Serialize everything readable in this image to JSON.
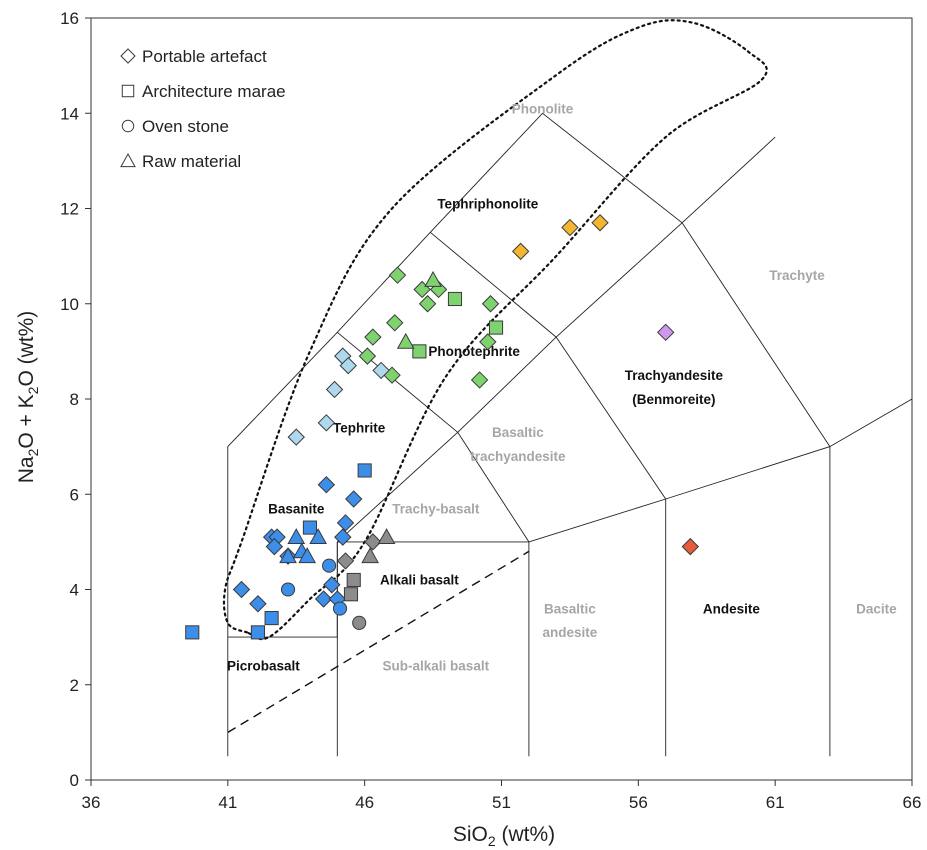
{
  "chart_data": {
    "type": "scatter",
    "title": "",
    "xlabel": {
      "main": "SiO",
      "sub": "2",
      "rest": " (wt%)"
    },
    "ylabel": {
      "p1": "Na",
      "s1": "2",
      "p2": "O + K",
      "s2": "2",
      "p3": "O (wt%)"
    },
    "xlim": [
      36,
      66
    ],
    "ylim": [
      0,
      16
    ],
    "x_ticks": [
      "36",
      "41",
      "46",
      "51",
      "56",
      "61",
      "66"
    ],
    "y_ticks": [
      "0",
      "2",
      "4",
      "6",
      "8",
      "10",
      "12",
      "14",
      "16"
    ],
    "legend": [
      {
        "label": "Portable artefact",
        "marker": "diamond"
      },
      {
        "label": "Architecture marae",
        "marker": "square"
      },
      {
        "label": "Oven stone",
        "marker": "circle"
      },
      {
        "label": "Raw material",
        "marker": "triangle"
      }
    ],
    "legend_position": "top-left",
    "fields": [
      {
        "label": "Phonolite",
        "x": 52.5,
        "y": 14.0,
        "style": "grey"
      },
      {
        "label": "Tephriphonolite",
        "x": 50.5,
        "y": 12.0,
        "style": "dark"
      },
      {
        "label": "Trachyte",
        "x": 61.8,
        "y": 10.5,
        "style": "grey"
      },
      {
        "label": "Phonotephrite",
        "x": 50.0,
        "y": 8.9,
        "style": "dark"
      },
      {
        "label": "Trachyandesite",
        "x": 57.3,
        "y": 8.4,
        "style": "dark"
      },
      {
        "label": "(Benmoreite)",
        "x": 57.3,
        "y": 7.9,
        "style": "dark"
      },
      {
        "label": "Tephrite",
        "x": 45.8,
        "y": 7.3,
        "style": "dark"
      },
      {
        "label": "Basaltic",
        "x": 51.6,
        "y": 7.2,
        "style": "grey"
      },
      {
        "label": "trachyandesite",
        "x": 51.6,
        "y": 6.7,
        "style": "grey"
      },
      {
        "label": "Basanite",
        "x": 43.5,
        "y": 5.6,
        "style": "dark"
      },
      {
        "label": "Trachy-basalt",
        "x": 48.6,
        "y": 5.6,
        "style": "grey"
      },
      {
        "label": "Alkali basalt",
        "x": 48.0,
        "y": 4.1,
        "style": "dark"
      },
      {
        "label": "Basaltic",
        "x": 53.5,
        "y": 3.5,
        "style": "grey"
      },
      {
        "label": "andesite",
        "x": 53.5,
        "y": 3.0,
        "style": "grey"
      },
      {
        "label": "Andesite",
        "x": 59.4,
        "y": 3.5,
        "style": "dark"
      },
      {
        "label": "Dacite",
        "x": 64.7,
        "y": 3.5,
        "style": "grey"
      },
      {
        "label": "Picrobasalt",
        "x": 42.3,
        "y": 2.3,
        "style": "dark"
      },
      {
        "label": "Sub-alkali basalt",
        "x": 48.6,
        "y": 2.3,
        "style": "grey"
      }
    ],
    "field_boundaries": [
      [
        [
          41,
          0.5
        ],
        [
          41,
          7
        ],
        [
          45,
          9.4
        ],
        [
          48.4,
          11.5
        ],
        [
          52.5,
          14
        ],
        [
          57.6,
          11.7
        ],
        [
          63,
          7
        ],
        [
          63,
          0.5
        ]
      ],
      [
        [
          41,
          3
        ],
        [
          45,
          3
        ],
        [
          45,
          5
        ],
        [
          49.4,
          7.3
        ],
        [
          53,
          9.3
        ],
        [
          57.6,
          11.7
        ]
      ],
      [
        [
          45,
          0.5
        ],
        [
          45,
          5
        ]
      ],
      [
        [
          45,
          5
        ],
        [
          52,
          5
        ],
        [
          57,
          5.9
        ],
        [
          63,
          7
        ],
        [
          69,
          8
        ]
      ],
      [
        [
          52,
          0.5
        ],
        [
          52,
          5
        ]
      ],
      [
        [
          57,
          0.5
        ],
        [
          57,
          5.9
        ]
      ],
      [
        [
          49.4,
          7.3
        ],
        [
          52,
          5
        ]
      ],
      [
        [
          53,
          9.3
        ],
        [
          57,
          5.9
        ]
      ],
      [
        [
          45,
          9.4
        ],
        [
          49.4,
          7.3
        ]
      ],
      [
        [
          48.4,
          11.5
        ],
        [
          53,
          9.3
        ]
      ],
      [
        [
          57.6,
          11.7
        ],
        [
          61,
          13.5
        ]
      ]
    ],
    "alkaline_divider": [
      [
        41,
        1.0
      ],
      [
        52,
        4.8
      ]
    ],
    "envelope": [
      [
        41.7,
        3.1
      ],
      [
        41.0,
        3.3
      ],
      [
        40.9,
        4.0
      ],
      [
        41.5,
        5.0
      ],
      [
        44.0,
        9.0
      ],
      [
        47.0,
        12.0
      ],
      [
        53.0,
        14.8
      ],
      [
        56.0,
        15.8
      ],
      [
        58.0,
        15.9
      ],
      [
        60.0,
        15.3
      ],
      [
        60.5,
        14.7
      ],
      [
        57.0,
        13.5
      ],
      [
        53.0,
        11.0
      ],
      [
        49.0,
        8.5
      ],
      [
        46.0,
        5.0
      ],
      [
        44.0,
        3.8
      ],
      [
        42.5,
        3.0
      ],
      [
        41.7,
        3.1
      ]
    ],
    "series": [
      {
        "name": "Portable artefact (yellow)",
        "marker": "diamond",
        "color": "#f2b630",
        "points": [
          [
            51.7,
            11.1
          ],
          [
            53.5,
            11.6
          ],
          [
            54.6,
            11.7
          ]
        ]
      },
      {
        "name": "Portable artefact (purple)",
        "marker": "diamond",
        "color": "#cc99ee",
        "points": [
          [
            57.0,
            9.4
          ]
        ]
      },
      {
        "name": "Portable artefact (red)",
        "marker": "diamond",
        "color": "#e85b3a",
        "points": [
          [
            57.9,
            4.9
          ]
        ]
      },
      {
        "name": "Portable artefact (green)",
        "marker": "diamond",
        "color": "#7ed36e",
        "points": [
          [
            47.2,
            10.6
          ],
          [
            48.1,
            10.3
          ],
          [
            48.3,
            10.0
          ],
          [
            48.7,
            10.3
          ],
          [
            50.6,
            10.0
          ],
          [
            46.3,
            9.3
          ],
          [
            47.1,
            9.6
          ],
          [
            46.1,
            8.9
          ],
          [
            47.0,
            8.5
          ],
          [
            50.5,
            9.2
          ],
          [
            50.2,
            8.4
          ]
        ]
      },
      {
        "name": "Portable artefact (light blue)",
        "marker": "diamond",
        "color": "#add8ee",
        "points": [
          [
            45.2,
            8.9
          ],
          [
            45.4,
            8.7
          ],
          [
            44.9,
            8.2
          ],
          [
            44.6,
            7.5
          ],
          [
            43.5,
            7.2
          ],
          [
            46.6,
            8.6
          ]
        ]
      },
      {
        "name": "Portable artefact (blue)",
        "marker": "diamond",
        "color": "#3d8ee8",
        "points": [
          [
            44.6,
            6.2
          ],
          [
            45.6,
            5.9
          ],
          [
            45.3,
            5.4
          ],
          [
            42.6,
            5.1
          ],
          [
            42.8,
            5.1
          ],
          [
            42.7,
            4.9
          ],
          [
            43.2,
            4.7
          ],
          [
            45.2,
            5.1
          ],
          [
            41.5,
            4.0
          ],
          [
            42.1,
            3.7
          ],
          [
            44.5,
            3.8
          ],
          [
            45.0,
            3.8
          ],
          [
            44.8,
            4.1
          ]
        ]
      },
      {
        "name": "Portable artefact (grey)",
        "marker": "diamond",
        "color": "#8c8c8c",
        "points": [
          [
            45.3,
            4.6
          ],
          [
            46.3,
            5.0
          ]
        ]
      },
      {
        "name": "Architecture marae (green)",
        "marker": "square",
        "color": "#7ed36e",
        "points": [
          [
            49.3,
            10.1
          ],
          [
            50.8,
            9.5
          ],
          [
            48.0,
            9.0
          ]
        ]
      },
      {
        "name": "Architecture marae (blue)",
        "marker": "square",
        "color": "#3d8ee8",
        "points": [
          [
            46.0,
            6.5
          ],
          [
            44.0,
            5.3
          ],
          [
            39.7,
            3.1
          ],
          [
            42.1,
            3.1
          ],
          [
            42.6,
            3.4
          ]
        ]
      },
      {
        "name": "Architecture marae (grey)",
        "marker": "square",
        "color": "#8c8c8c",
        "points": [
          [
            45.6,
            4.2
          ],
          [
            45.5,
            3.9
          ]
        ]
      },
      {
        "name": "Oven stone (blue)",
        "marker": "circle",
        "color": "#3d8ee8",
        "points": [
          [
            44.7,
            4.5
          ],
          [
            43.2,
            4.0
          ],
          [
            45.1,
            3.6
          ]
        ]
      },
      {
        "name": "Oven stone (grey)",
        "marker": "circle",
        "color": "#8c8c8c",
        "points": [
          [
            45.8,
            3.3
          ]
        ]
      },
      {
        "name": "Raw material (green)",
        "marker": "triangle",
        "color": "#7ed36e",
        "points": [
          [
            48.5,
            10.5
          ],
          [
            47.5,
            9.2
          ]
        ]
      },
      {
        "name": "Raw material (blue)",
        "marker": "triangle",
        "color": "#3d8ee8",
        "points": [
          [
            43.5,
            5.1
          ],
          [
            44.3,
            5.1
          ],
          [
            43.7,
            4.8
          ],
          [
            43.2,
            4.7
          ],
          [
            43.9,
            4.7
          ]
        ]
      },
      {
        "name": "Raw material (grey)",
        "marker": "triangle",
        "color": "#8c8c8c",
        "points": [
          [
            46.8,
            5.1
          ],
          [
            46.2,
            4.7
          ]
        ]
      }
    ]
  }
}
